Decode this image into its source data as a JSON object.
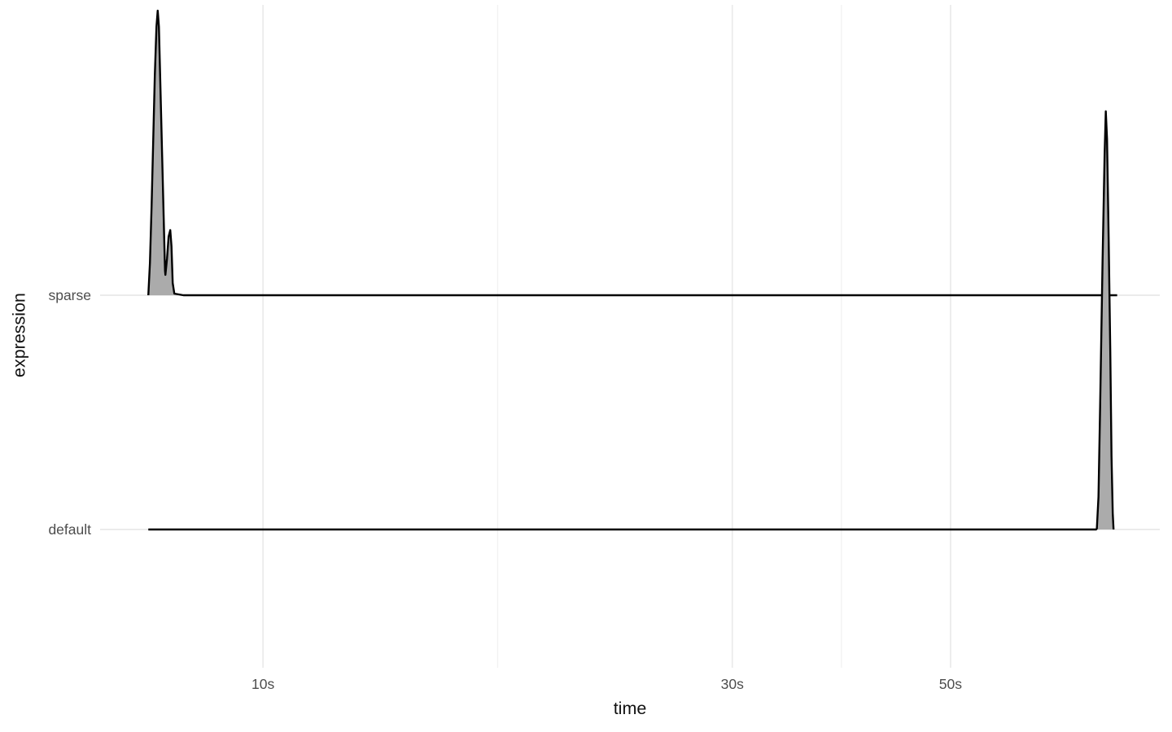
{
  "chart_data": {
    "type": "area",
    "variant": "ridgeline-density",
    "title": "",
    "xlabel": "time",
    "ylabel": "expression",
    "x_scale": "log10",
    "x_domain_seconds": [
      6.83,
      81.6
    ],
    "x_major_ticks": [
      {
        "seconds": 10,
        "label": "10s"
      },
      {
        "seconds": 30,
        "label": "30s"
      },
      {
        "seconds": 50,
        "label": "50s"
      }
    ],
    "x_minor_ticks_seconds": [
      17.32,
      38.73
    ],
    "categories": [
      "sparse",
      "default"
    ],
    "legend": "none",
    "grid": "major-vertical, minor-vertical, one horizontal line per category",
    "series": [
      {
        "name": "sparse",
        "summary": "density concentrated near 7.6-8.1s: tall main peak at ~7.8s with small secondary bump at ~8.05s, then flat near zero out to ~74s",
        "points": [
          [
            7.646,
            0
          ],
          [
            7.675,
            0.14
          ],
          [
            7.705,
            0.386
          ],
          [
            7.734,
            0.667
          ],
          [
            7.763,
            0.947
          ],
          [
            7.793,
            1.158
          ],
          [
            7.816,
            1.228
          ],
          [
            7.838,
            1.158
          ],
          [
            7.868,
            0.877
          ],
          [
            7.898,
            0.596
          ],
          [
            7.928,
            0.316
          ],
          [
            7.951,
            0.105
          ],
          [
            7.958,
            0.088
          ],
          [
            7.988,
            0.158
          ],
          [
            8.018,
            0.253
          ],
          [
            8.049,
            0.281
          ],
          [
            8.072,
            0.211
          ],
          [
            8.095,
            0.053
          ],
          [
            8.126,
            0.007
          ],
          [
            8.3,
            0
          ],
          [
            73.85,
            0
          ]
        ]
      },
      {
        "name": "default",
        "summary": "flat near zero from ~7.6s, single very tall narrow peak at ~71.9s (spike overlaps the sparse row above)",
        "points": [
          [
            7.646,
            0
          ],
          [
            70.3,
            0
          ],
          [
            70.42,
            0.004
          ],
          [
            70.69,
            0.14
          ],
          [
            70.96,
            0.526
          ],
          [
            71.37,
            1.158
          ],
          [
            71.71,
            1.614
          ],
          [
            71.91,
            1.804
          ],
          [
            72.12,
            1.684
          ],
          [
            72.39,
            1.263
          ],
          [
            72.67,
            0.772
          ],
          [
            72.88,
            0.316
          ],
          [
            73.09,
            0.07
          ],
          [
            73.23,
            0
          ]
        ]
      }
    ],
    "colors": {
      "ridge_fill": "#ABABAB",
      "ridge_line": "#000000",
      "grid_major": "#EBEBEB",
      "grid_minor": "#F1F1F1",
      "tick_text": "#4D4D4D",
      "title_text": "#111111",
      "background": "#FFFFFF"
    }
  }
}
